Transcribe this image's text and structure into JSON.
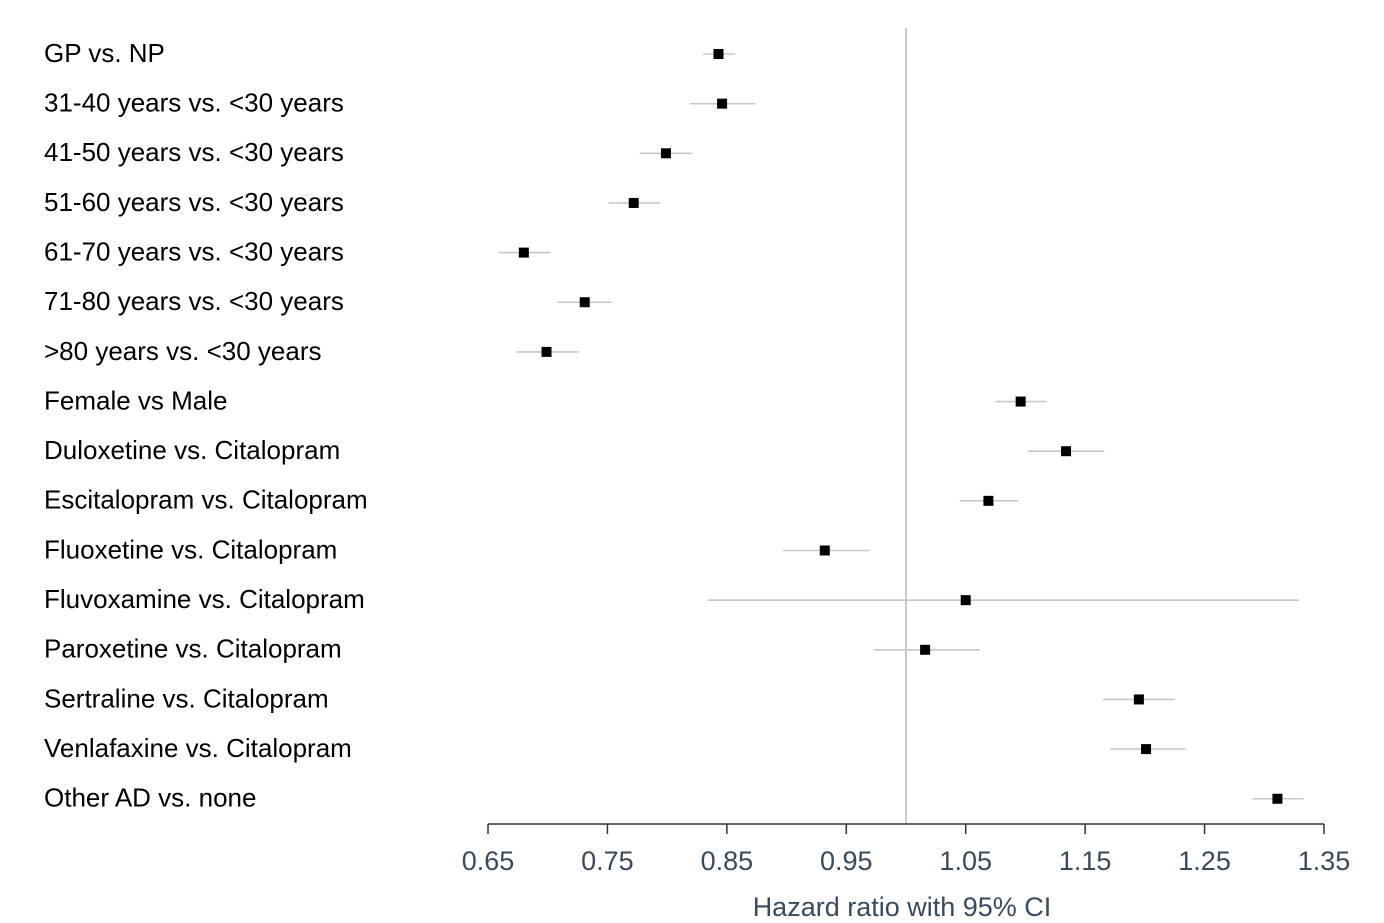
{
  "chart_data": {
    "type": "forest",
    "xlabel": "Hazard ratio with 95% CI",
    "xlim": [
      0.65,
      1.35
    ],
    "reference_line": 1.0,
    "ticks": [
      "0.65",
      "0.75",
      "0.85",
      "0.95",
      "1.05",
      "1.15",
      "1.25",
      "1.35"
    ],
    "tick_values": [
      0.65,
      0.75,
      0.85,
      0.95,
      1.05,
      1.15,
      1.25,
      1.35
    ],
    "rows": [
      {
        "label": "GP vs. NP",
        "hr": 0.843,
        "lo": 0.83,
        "hi": 0.857
      },
      {
        "label": "31-40 years vs. <30 years",
        "hr": 0.846,
        "lo": 0.819,
        "hi": 0.874
      },
      {
        "label": "41-50 years vs. <30 years",
        "hr": 0.799,
        "lo": 0.777,
        "hi": 0.821
      },
      {
        "label": "51-60 years vs. <30 years",
        "hr": 0.772,
        "lo": 0.751,
        "hi": 0.794
      },
      {
        "label": "61-70 years vs. <30 years",
        "hr": 0.68,
        "lo": 0.659,
        "hi": 0.702
      },
      {
        "label": "71-80 years vs. <30 years",
        "hr": 0.731,
        "lo": 0.708,
        "hi": 0.754
      },
      {
        "label": ">80 years vs. <30 years",
        "hr": 0.699,
        "lo": 0.674,
        "hi": 0.726
      },
      {
        "label": "Female vs Male",
        "hr": 1.096,
        "lo": 1.075,
        "hi": 1.118
      },
      {
        "label": "Duloxetine vs. Citalopram",
        "hr": 1.134,
        "lo": 1.102,
        "hi": 1.166
      },
      {
        "label": "Escitalopram vs. Citalopram",
        "hr": 1.069,
        "lo": 1.045,
        "hi": 1.094
      },
      {
        "label": "Fluoxetine vs. Citalopram",
        "hr": 0.932,
        "lo": 0.897,
        "hi": 0.97
      },
      {
        "label": "Fluvoxamine vs. Citalopram",
        "hr": 1.05,
        "lo": 0.834,
        "hi": 1.329
      },
      {
        "label": "Paroxetine vs. Citalopram",
        "hr": 1.016,
        "lo": 0.973,
        "hi": 1.062
      },
      {
        "label": "Sertraline vs. Citalopram",
        "hr": 1.195,
        "lo": 1.165,
        "hi": 1.225
      },
      {
        "label": "Venlafaxine vs. Citalopram",
        "hr": 1.201,
        "lo": 1.171,
        "hi": 1.234
      },
      {
        "label": "Other AD vs. none",
        "hr": 1.311,
        "lo": 1.29,
        "hi": 1.333
      }
    ],
    "colors": {
      "marker": "#000000",
      "ci": "#c8c8c8",
      "reference": "#c8c8c8",
      "axis": "#333333",
      "tick_text": "#3b4a5a"
    }
  }
}
